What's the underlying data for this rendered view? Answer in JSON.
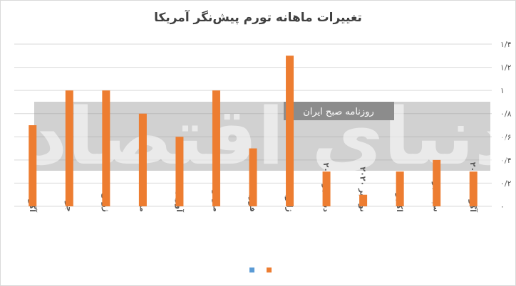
{
  "chart_data": {
    "type": "bar",
    "title": "تغییرات ماهانه تورم پیش‌نگر آمریکا",
    "watermark": [
      "دنیای اقتصاد",
      "روزنامه صبح ایران"
    ],
    "categories": [
      "آگوست ۲۰۲۱",
      "جولای ۲۰۲۱",
      "ژوئن ۲۰۲۱",
      "می ۲۰۲۱",
      "آوریل ۲۰۲۱",
      "مارس ۲۰۲۱",
      "فوریه ۲۰۲۱",
      "ژانویه ۲۰۲۱",
      "دسامبر ۲۰۲۰",
      "نوامبر ۲۰۲۰",
      "اکتبر ۲۰۲۰",
      "سپتامبر ۲۰۲۰",
      "آگوست ۲۰۲۰"
    ],
    "series": [
      {
        "color": "#5b9bd5",
        "values": [
          null,
          null,
          null,
          null,
          null,
          null,
          null,
          null,
          null,
          null,
          null,
          null,
          null
        ]
      },
      {
        "color": "#ed7d31",
        "values": [
          0.7,
          1.0,
          1.0,
          0.8,
          0.6,
          1.0,
          0.5,
          1.3,
          0.3,
          0.1,
          0.3,
          0.4,
          0.3
        ]
      }
    ],
    "ylim": [
      0,
      1.4
    ],
    "yticks": [
      {
        "value": 0,
        "label": "۰"
      },
      {
        "value": 0.2,
        "label": "۰/۲"
      },
      {
        "value": 0.4,
        "label": "۰/۴"
      },
      {
        "value": 0.6,
        "label": "۰/۶"
      },
      {
        "value": 0.8,
        "label": "۰/۸"
      },
      {
        "value": 1,
        "label": "۱"
      },
      {
        "value": 1.2,
        "label": "۱/۲"
      },
      {
        "value": 1.4,
        "label": "۱/۴"
      }
    ],
    "grid": true
  }
}
